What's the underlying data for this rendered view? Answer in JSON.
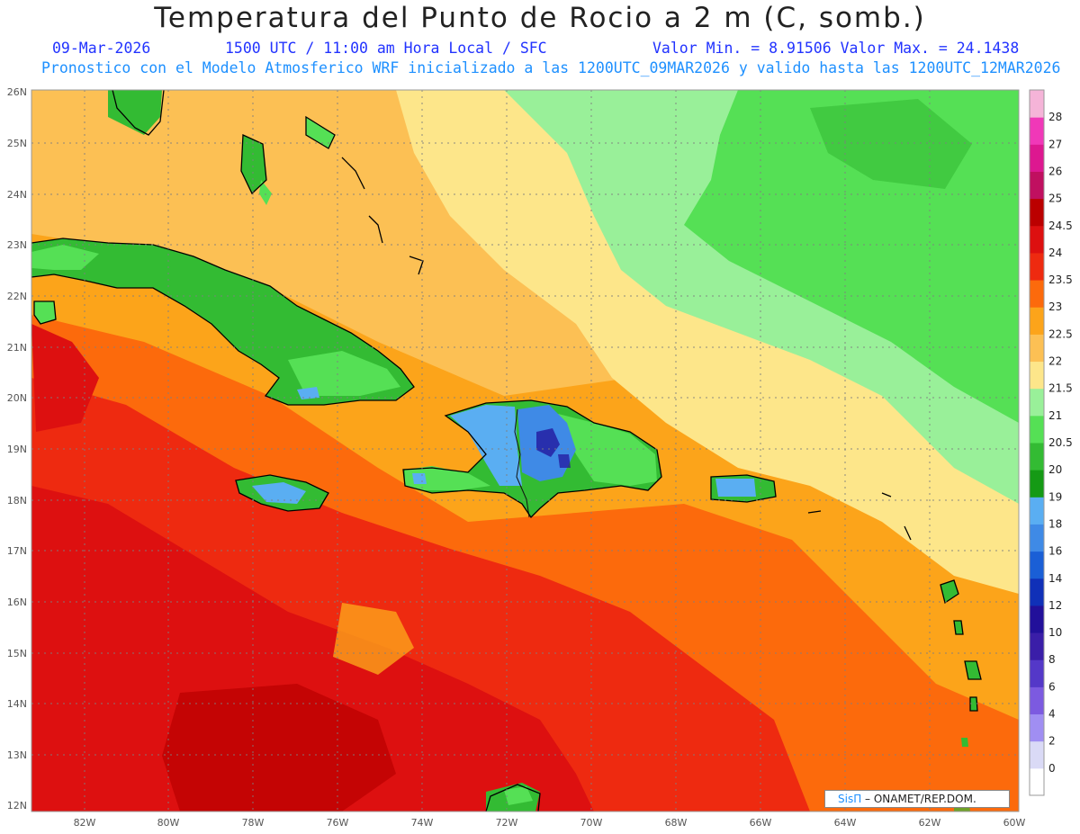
{
  "header": {
    "title": "Temperatura del Punto de Rocio a 2 m (C, somb.)",
    "date": "09-Mar-2026",
    "time": "1500 UTC / 11:00 am Hora Local / SFC",
    "min_max": "Valor Min. = 8.91506  Valor Max. = 24.1438",
    "pronostico": "Pronostico con el Modelo Atmosferico WRF inicializado a las 1200UTC_09MAR2026 y valido hasta las  1200UTC_12MAR2026"
  },
  "axes": {
    "lat_labels": [
      "26N",
      "25N",
      "24N",
      "23N",
      "22N",
      "21N",
      "20N",
      "19N",
      "18N",
      "17N",
      "16N",
      "15N",
      "14N",
      "13N",
      "12N"
    ],
    "lon_labels": [
      "82W",
      "80W",
      "78W",
      "76W",
      "74W",
      "72W",
      "70W",
      "68W",
      "66W",
      "64W",
      "62W",
      "60W"
    ]
  },
  "colorbar": {
    "labels": [
      "0",
      "2",
      "4",
      "6",
      "8",
      "10",
      "12",
      "14",
      "16",
      "18",
      "19",
      "20",
      "20.5",
      "21",
      "21.5",
      "22",
      "22.5",
      "23",
      "23.5",
      "24",
      "24.5",
      "25",
      "26",
      "27",
      "28"
    ],
    "colors": [
      "#ffffff",
      "#dadaf6",
      "#a08ef2",
      "#7c5ae0",
      "#5438c8",
      "#3a1ea8",
      "#22109a",
      "#1030b8",
      "#1a5fd6",
      "#3f8ae6",
      "#5aaef2",
      "#159a15",
      "#33bb33",
      "#55e055",
      "#99f099",
      "#fde68a",
      "#fcc054",
      "#fca41a",
      "#fc6a0c",
      "#ee2a10",
      "#dd1010",
      "#bb0000",
      "#c01060",
      "#dd1890",
      "#f038b8",
      "#f5b4d8"
    ]
  },
  "credit": {
    "logo": "SisΠ",
    "text": " – ONAMET/REP.DOM."
  },
  "colors": {
    "orange_light": "#fcc054",
    "orange": "#fca41a",
    "orange_dark": "#fc6a0c",
    "red_orange": "#ee2a10",
    "red": "#dd1010",
    "yellow": "#fde68a",
    "green_light": "#99f099",
    "green": "#55e055",
    "green_dark": "#33bb33",
    "green_deep": "#159a15",
    "blue_light": "#5aaef2",
    "blue": "#3f8ae6",
    "purple": "#22109a"
  }
}
